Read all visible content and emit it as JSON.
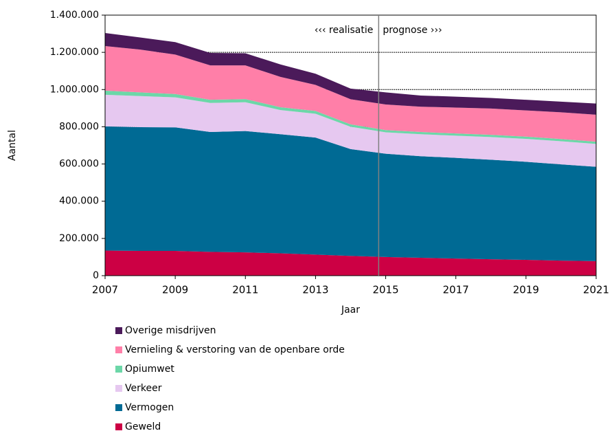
{
  "chart_data": {
    "type": "stacked_area",
    "x_label": "Jaar",
    "y_label": "Aantal",
    "x": [
      2007,
      2008,
      2009,
      2010,
      2011,
      2012,
      2013,
      2014,
      2015,
      2016,
      2017,
      2018,
      2019,
      2020,
      2021
    ],
    "xlim": [
      2007,
      2021
    ],
    "xticks": [
      2007,
      2009,
      2011,
      2013,
      2015,
      2017,
      2019,
      2021
    ],
    "ylim": [
      0,
      1400000
    ],
    "yticks": [
      0,
      {
        "value": 200000,
        "label": "200.000"
      },
      {
        "value": 400000,
        "label": "400.000"
      },
      {
        "value": 600000,
        "label": "600.000"
      },
      {
        "value": 800000,
        "label": "800.000"
      },
      {
        "value": 1000000,
        "label": "1.000.000"
      },
      {
        "value": 1200000,
        "label": "1.200.000"
      },
      {
        "value": 1400000,
        "label": "1.400.000"
      }
    ],
    "grid": true,
    "series": [
      {
        "name": "Geweld",
        "color": "#cc0044",
        "values": [
          135000,
          133000,
          133000,
          128000,
          125000,
          120000,
          113000,
          106000,
          100000,
          96000,
          92000,
          88000,
          85000,
          81000,
          78000
        ]
      },
      {
        "name": "Vermogen",
        "color": "#006a94",
        "values": [
          667000,
          665000,
          664000,
          644000,
          652000,
          640000,
          629000,
          574000,
          555000,
          546000,
          541000,
          535000,
          527000,
          517000,
          507000
        ]
      },
      {
        "name": "Verkeer",
        "color": "#e6c8f0",
        "values": [
          170000,
          167000,
          161000,
          156000,
          155000,
          130000,
          128000,
          120000,
          115000,
          118000,
          119000,
          122000,
          123000,
          124000,
          123000
        ]
      },
      {
        "name": "Opiumwet",
        "color": "#6cd7a8",
        "values": [
          22000,
          20000,
          18000,
          17000,
          17000,
          15000,
          15000,
          13000,
          12000,
          12000,
          12000,
          12000,
          12000,
          12000,
          12000
        ]
      },
      {
        "name": "Vernieling & verstoring van de openbare orde",
        "color": "#ff7fa8",
        "values": [
          240000,
          230000,
          212000,
          185000,
          181000,
          163000,
          140000,
          135000,
          138000,
          136000,
          139000,
          141000,
          141000,
          144000,
          145000
        ]
      },
      {
        "name": "Overige misdrijven",
        "color": "#4b1a5a",
        "values": [
          70000,
          65000,
          67000,
          67000,
          65000,
          67000,
          60000,
          57000,
          65000,
          60000,
          59000,
          57000,
          57000,
          57000,
          60000
        ]
      }
    ],
    "divider_x": 2014.8,
    "annotations": [
      "‹‹‹ realisatie",
      "prognose ›››"
    ]
  }
}
